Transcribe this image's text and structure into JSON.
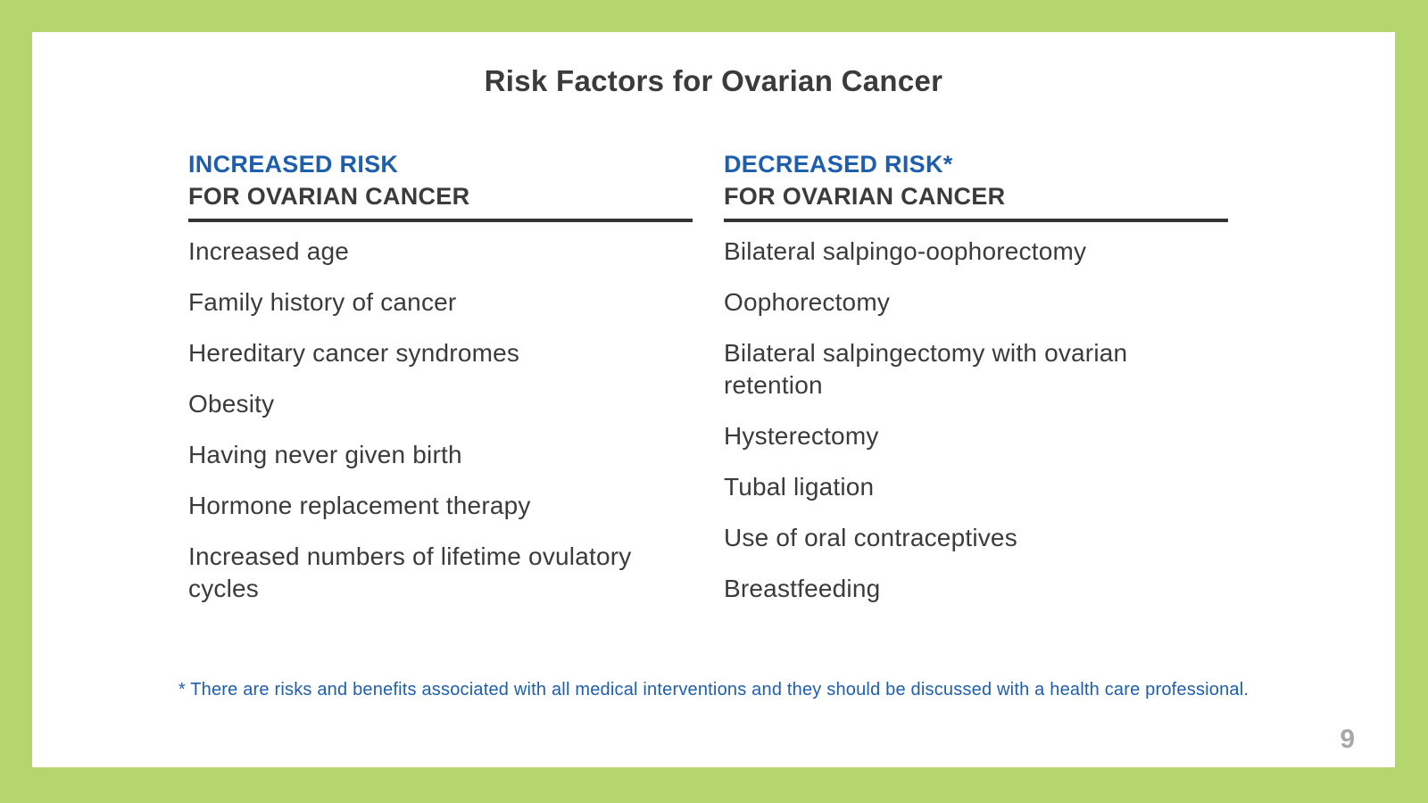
{
  "page": {
    "title": "Risk Factors for Ovarian Cancer",
    "footnote": "* There are risks and benefits associated with all medical interventions and they should be discussed with a health care professional.",
    "page_number": "9"
  },
  "columns": [
    {
      "heading_line1": "INCREASED RISK",
      "heading_line2": "FOR OVARIAN CANCER",
      "items": [
        "Increased age",
        "Family history of cancer",
        "Hereditary cancer syndromes",
        "Obesity",
        "Having never given birth",
        "Hormone replacement therapy",
        "Increased numbers of lifetime ovulatory cycles"
      ]
    },
    {
      "heading_line1": "DECREASED RISK*",
      "heading_line2": "FOR OVARIAN CANCER",
      "items": [
        "Bilateral salpingo-oophorectomy",
        "Oophorectomy",
        "Bilateral salpingectomy with ovarian retention",
        "Hysterectomy",
        "Tubal ligation",
        "Use of oral contraceptives",
        "Breastfeeding"
      ]
    }
  ],
  "colors": {
    "border_green": "#b4d66d",
    "heading_blue": "#1e5fad",
    "text_dark": "#3b3b3d",
    "underline_dark": "#333333",
    "footnote_blue": "#1e5fad",
    "page_number_gray": "#a8a8a8"
  }
}
